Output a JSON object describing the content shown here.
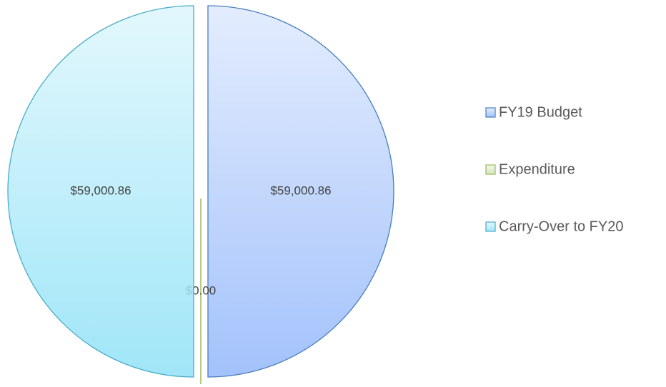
{
  "chart_data": {
    "type": "pie",
    "categories": [
      "FY19 Budget",
      "Expenditure",
      "Carry-Over to FY20"
    ],
    "values": [
      59000.86,
      0,
      59000.86
    ],
    "value_labels": [
      "$59,000.86",
      "$0.00",
      "$59,000.86"
    ],
    "colors": [
      "#a3c2fb",
      "#d7e4bd",
      "#a0e6f8"
    ],
    "border_colors": [
      "#4a7ebb",
      "#9bbb59",
      "#4bacc6"
    ],
    "legend": "right"
  }
}
